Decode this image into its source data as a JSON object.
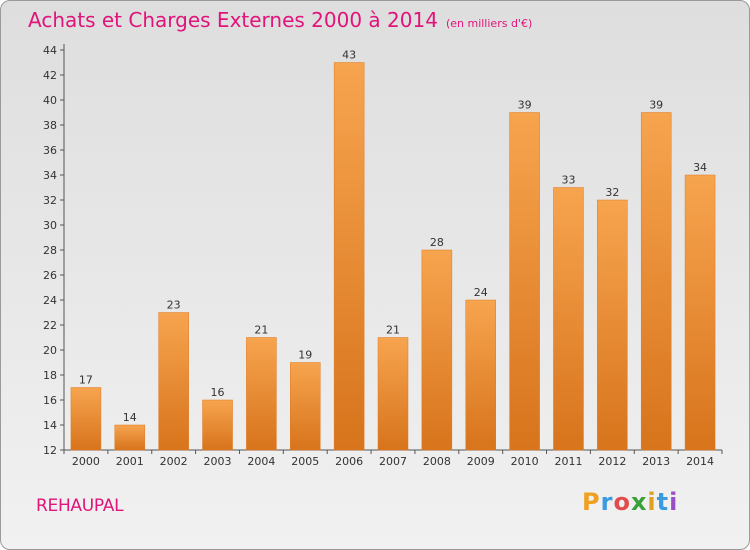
{
  "header": {
    "title": "Achats et Charges Externes 2000 à 2014",
    "subtitle": "(en milliers d'€)"
  },
  "footer": {
    "commune": "REHAUPAL",
    "logo_letters": [
      "P",
      "r",
      "o",
      "x",
      "i",
      "t",
      "i"
    ],
    "logo_colors": [
      "#f0a020",
      "#3a9be0",
      "#e24c4c",
      "#3aa13a",
      "#e0a020",
      "#3a9be0",
      "#9b4fc4"
    ]
  },
  "chart_data": {
    "type": "bar",
    "categories": [
      "2000",
      "2001",
      "2002",
      "2003",
      "2004",
      "2005",
      "2006",
      "2007",
      "2008",
      "2009",
      "2010",
      "2011",
      "2012",
      "2013",
      "2014"
    ],
    "values": [
      17,
      14,
      23,
      16,
      21,
      19,
      43,
      21,
      28,
      24,
      39,
      33,
      32,
      39,
      34
    ],
    "ylim": [
      12,
      44
    ],
    "yticks": [
      12,
      14,
      16,
      18,
      20,
      22,
      24,
      26,
      28,
      30,
      32,
      34,
      36,
      38,
      40,
      42,
      44
    ],
    "bar_color_top": "#f7a44f",
    "bar_color_bottom": "#d7741c",
    "grid": false,
    "xlabel": "",
    "ylabel": ""
  }
}
